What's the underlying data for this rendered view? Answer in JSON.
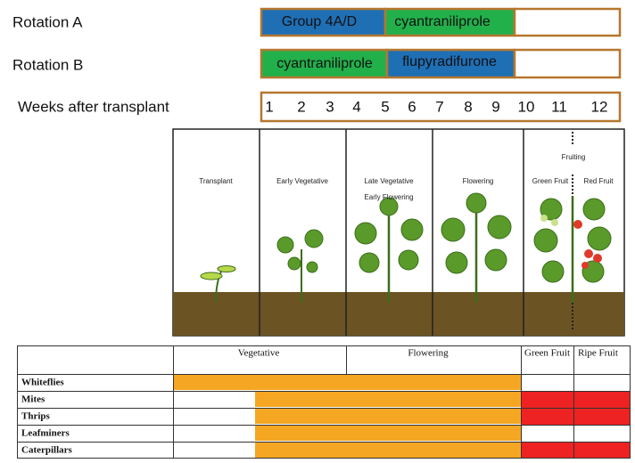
{
  "rotations": [
    {
      "label": "Rotation A",
      "segments": [
        "Group 4A/D",
        "cyantraniliprole"
      ]
    },
    {
      "label": "Rotation B",
      "segments": [
        "cyantraniliprole",
        "flupyradifurone"
      ]
    }
  ],
  "weeks": {
    "label": "Weeks after transplant",
    "numbers": [
      1,
      2,
      3,
      4,
      5,
      6,
      7,
      8,
      9,
      10,
      11,
      12
    ]
  },
  "stages": {
    "transplant": "Transplant",
    "early_vegetative": "Early Vegetative",
    "late_vegetative": "Late Vegetative",
    "early_flowering": "Early Flowering",
    "flowering": "Flowering",
    "fruiting": "Fruiting",
    "green_fruit": "Green Fruit",
    "red_fruit": "Red Fruit"
  },
  "table": {
    "header": [
      "Vegetative",
      "Flowering",
      "Green Fruit",
      "Ripe Fruit"
    ],
    "pests": [
      "Whiteflies",
      "Mites",
      "Thrips",
      "Leafminers",
      "Caterpillars"
    ]
  }
}
